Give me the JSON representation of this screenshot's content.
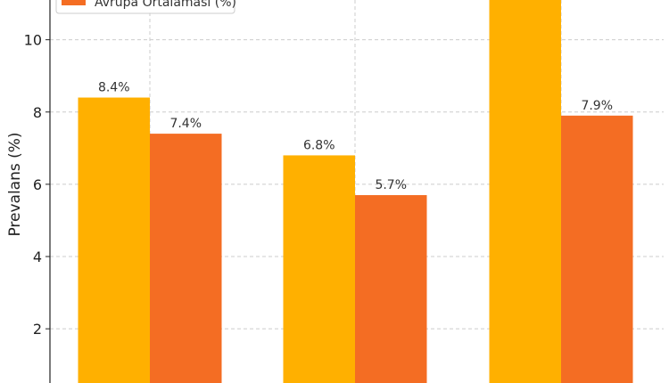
{
  "chart_data": {
    "type": "bar",
    "title": "",
    "xlabel": "",
    "ylabel": "Prevalans (%)",
    "ylim": [
      0.5,
      11.1
    ],
    "yticks": [
      2,
      4,
      6,
      8,
      10
    ],
    "grid": true,
    "legend_position": "top-left",
    "categories": [
      "",
      "",
      ""
    ],
    "series": [
      {
        "name": "",
        "color": "#FFB000",
        "values": [
          8.4,
          6.8,
          11.5
        ],
        "labels": [
          "8.4%",
          "6.8%",
          ""
        ]
      },
      {
        "name": "Avrupa Ortalaması (%)",
        "color": "#F46D23",
        "values": [
          7.4,
          5.7,
          7.9
        ],
        "labels": [
          "7.4%",
          "5.7%",
          "7.9%"
        ]
      }
    ]
  }
}
